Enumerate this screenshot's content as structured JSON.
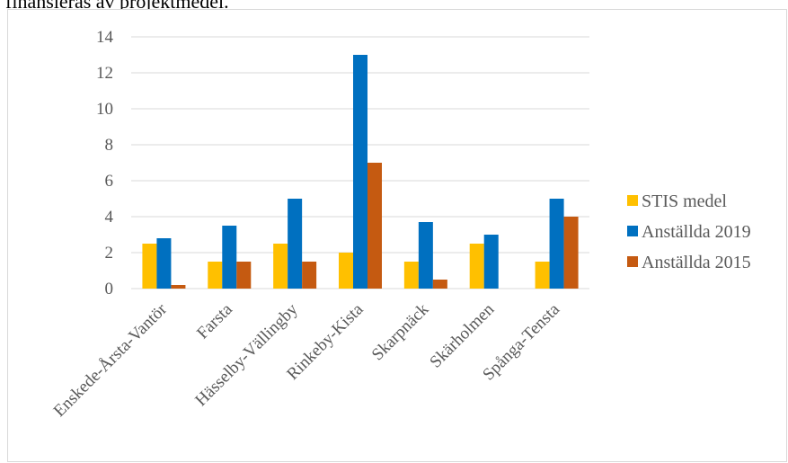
{
  "page": {
    "heading_fragment": "finansieras av projektmedel."
  },
  "chart_data": {
    "type": "bar",
    "categories": [
      "Enskede-Årsta-Vantör",
      "Farsta",
      "Hässelby-Vällingby",
      "Rinkeby-Kista",
      "Skarpnäck",
      "Skärholmen",
      "Spånga-Tensta"
    ],
    "series": [
      {
        "name": "STIS medel",
        "color": "#FFC000",
        "values": [
          2.5,
          1.5,
          2.5,
          2,
          1.5,
          2.5,
          1.5
        ]
      },
      {
        "name": "Anställda 2019",
        "color": "#0070C0",
        "values": [
          2.8,
          3.5,
          5,
          13,
          3.7,
          3,
          5
        ]
      },
      {
        "name": "Anställda 2015",
        "color": "#C55A11",
        "values": [
          0.2,
          1.5,
          1.5,
          7,
          0.5,
          0,
          4
        ]
      }
    ],
    "yticks": [
      "0",
      "2",
      "4",
      "6",
      "8",
      "10",
      "12",
      "14"
    ],
    "ylim": [
      0,
      14
    ],
    "grid": true,
    "legend_position": "right",
    "gridline_color": "#d9d9d9",
    "axis_text_color": "#595959"
  }
}
